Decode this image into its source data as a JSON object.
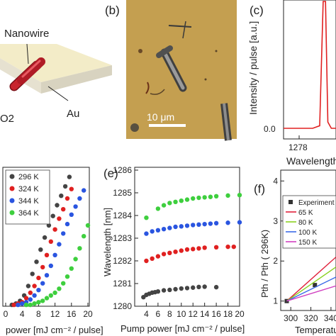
{
  "panels": {
    "a": {
      "labels": [
        "Nanowire",
        "Au",
        "O2"
      ]
    },
    "b": {
      "letter": "(b)",
      "scalebar": "10 μm"
    },
    "c": {
      "letter": "(c)",
      "ylabel": "Intensity / pulse [a.u.]",
      "xlabel": "Wavelength",
      "xtick": "1278",
      "ytick": "0.0"
    },
    "d": {
      "xlabel": "power [mJ cm⁻² / pulse]"
    },
    "e": {
      "letter": "(e)",
      "ylabel": "Wavelength [nm]",
      "xlabel": "Pump power [mJ cm⁻² / pulse]"
    },
    "f": {
      "letter": "(f)",
      "ylabel": "Pth / Pth ( 296K)",
      "xlabel": "Temperatu"
    }
  },
  "colors": {
    "296 K": "#444444",
    "324 K": "#e02020",
    "344 K": "#2a55e0",
    "364 K": "#3ecf3e",
    "spectrum": "#e02020",
    "65 K": "#e0203a",
    "80 K": "#8ad020",
    "100 K": "#3a6ae8",
    "150 K": "#d040c0"
  },
  "chart_data": [
    {
      "panel": "c",
      "type": "line",
      "title": "",
      "xlabel": "Wavelength",
      "ylabel": "Intensity / pulse [a.u.]",
      "xticks": [
        1278
      ],
      "yticks": [
        0.0
      ],
      "series": [
        {
          "x": [
            1276.5,
            1278.0,
            1279.0,
            1279.6,
            1279.9,
            1280.1,
            1280.3,
            1280.6,
            1281.0
          ],
          "y": [
            0.0,
            0.0,
            0.0,
            0.02,
            1.0,
            1.0,
            0.05,
            0.0,
            0.0
          ]
        }
      ]
    },
    {
      "panel": "d",
      "type": "scatter",
      "xlabel": "power [mJ cm⁻² / pulse]",
      "ylabel": "",
      "xlim": [
        0,
        20
      ],
      "xticks": [
        0,
        4,
        8,
        12,
        16,
        20
      ],
      "legend": "top-left",
      "series": [
        {
          "name": "296 K",
          "x": [
            1.5,
            2.5,
            3.5,
            4.5,
            5.5,
            6.5,
            7.5,
            8.5,
            9.5,
            10.5,
            11.5,
            12.5,
            13.5,
            14.5,
            15.5
          ],
          "y": [
            0.01,
            0.02,
            0.04,
            0.08,
            0.15,
            0.24,
            0.33,
            0.42,
            0.51,
            0.6,
            0.67,
            0.75,
            0.82,
            0.89,
            0.96
          ]
        },
        {
          "name": "324 K",
          "x": [
            2,
            3,
            4,
            5,
            6,
            7,
            8,
            9,
            10,
            11,
            12,
            13,
            14,
            15,
            16
          ],
          "y": [
            0.01,
            0.02,
            0.03,
            0.06,
            0.1,
            0.15,
            0.21,
            0.29,
            0.38,
            0.48,
            0.57,
            0.65,
            0.72,
            0.8,
            0.87
          ]
        },
        {
          "name": "344 K",
          "x": [
            3,
            4,
            5,
            6,
            7,
            8,
            9,
            10,
            11,
            12,
            13,
            14,
            15,
            16,
            17,
            18,
            19
          ],
          "y": [
            0.01,
            0.02,
            0.03,
            0.05,
            0.08,
            0.12,
            0.17,
            0.23,
            0.3,
            0.38,
            0.46,
            0.54,
            0.61,
            0.68,
            0.74,
            0.8,
            0.86
          ]
        },
        {
          "name": "364 K",
          "x": [
            5,
            6,
            7,
            8,
            9,
            10,
            11,
            12,
            13,
            14,
            15,
            16,
            17,
            18,
            19,
            20
          ],
          "y": [
            0.01,
            0.01,
            0.02,
            0.03,
            0.04,
            0.06,
            0.08,
            0.1,
            0.13,
            0.17,
            0.22,
            0.28,
            0.35,
            0.43,
            0.52,
            0.6
          ]
        }
      ]
    },
    {
      "panel": "e",
      "type": "scatter",
      "xlabel": "Pump power [mJ cm⁻² / pulse]",
      "ylabel": "Wavelength [nm]",
      "xlim": [
        2,
        20
      ],
      "ylim": [
        1280,
        1286
      ],
      "xticks": [
        4,
        6,
        8,
        10,
        12,
        14,
        16,
        18,
        20
      ],
      "yticks": [
        1280,
        1281,
        1282,
        1283,
        1284,
        1285,
        1286
      ],
      "series": [
        {
          "name": "296 K",
          "x": [
            3.5,
            4,
            4.5,
            5,
            5.5,
            6,
            7,
            8,
            9,
            10,
            11,
            12,
            13,
            14,
            16
          ],
          "y": [
            1280.4,
            1280.5,
            1280.55,
            1280.6,
            1280.62,
            1280.65,
            1280.7,
            1280.72,
            1280.75,
            1280.78,
            1280.8,
            1280.82,
            1280.85,
            1280.86,
            1280.84
          ]
        },
        {
          "name": "324 K",
          "x": [
            4,
            5,
            6,
            7,
            8,
            9,
            10,
            11,
            12,
            13,
            14,
            16,
            18,
            19
          ],
          "y": [
            1282.0,
            1282.1,
            1282.2,
            1282.3,
            1282.35,
            1282.4,
            1282.45,
            1282.5,
            1282.52,
            1282.55,
            1282.58,
            1282.6,
            1282.62,
            1282.62
          ]
        },
        {
          "name": "344 K",
          "x": [
            4,
            5,
            6,
            7,
            8,
            9,
            10,
            11,
            12,
            13,
            14,
            15,
            16,
            18,
            20
          ],
          "y": [
            1283.2,
            1283.3,
            1283.35,
            1283.4,
            1283.45,
            1283.5,
            1283.52,
            1283.55,
            1283.58,
            1283.6,
            1283.62,
            1283.64,
            1283.66,
            1283.68,
            1283.7
          ]
        },
        {
          "name": "364 K",
          "x": [
            4,
            6,
            7,
            8,
            9,
            10,
            11,
            12,
            13,
            14,
            15,
            16,
            18,
            20
          ],
          "y": [
            1283.9,
            1284.3,
            1284.45,
            1284.55,
            1284.6,
            1284.65,
            1284.7,
            1284.75,
            1284.78,
            1284.8,
            1284.82,
            1284.85,
            1284.88,
            1284.9
          ]
        }
      ]
    },
    {
      "panel": "f",
      "type": "line",
      "xlabel": "Temperatu",
      "ylabel": "Pth / Pth ( 296K)",
      "xlim": [
        290,
        345
      ],
      "ylim": [
        0.8,
        4.2
      ],
      "xticks": [
        300,
        320,
        340
      ],
      "yticks": [
        1,
        2,
        3,
        4
      ],
      "legend": "top-left",
      "series": [
        {
          "name": "Experiment",
          "x": [
            296,
            324
          ],
          "y": [
            1.0,
            1.4
          ]
        },
        {
          "name": "65 K",
          "x": [
            296,
            345
          ],
          "y": [
            1.0,
            2.1
          ]
        },
        {
          "name": "80 K",
          "x": [
            296,
            345
          ],
          "y": [
            1.0,
            1.85
          ]
        },
        {
          "name": "100 K",
          "x": [
            296,
            345
          ],
          "y": [
            1.0,
            1.6
          ]
        },
        {
          "name": "150 K",
          "x": [
            296,
            345
          ],
          "y": [
            1.0,
            1.38
          ]
        }
      ]
    }
  ]
}
